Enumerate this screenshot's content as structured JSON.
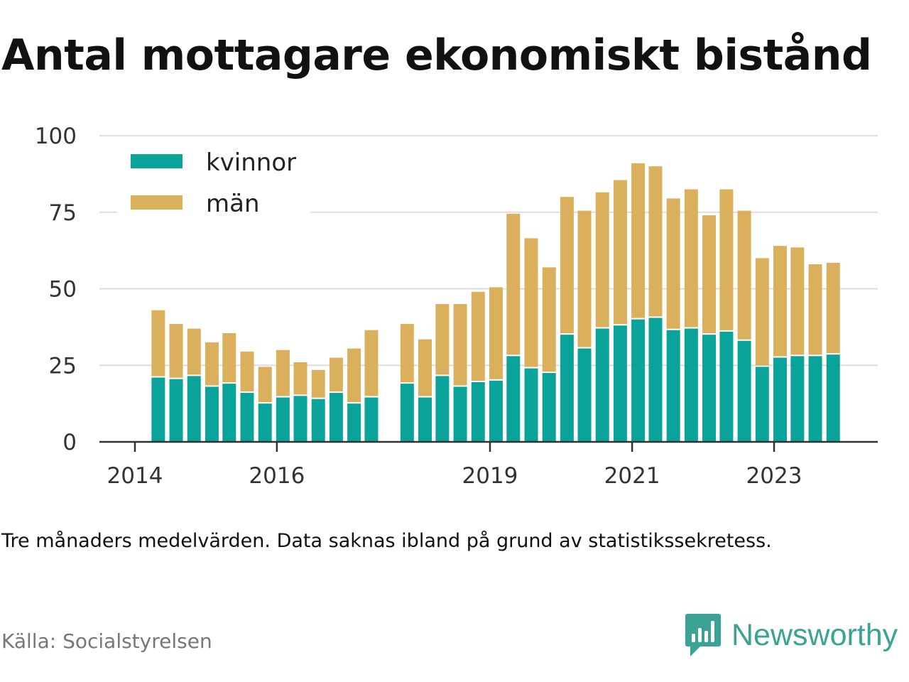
{
  "title": "Antal mottagare ekonomiskt bistånd",
  "note": "Tre månaders medelvärden. Data saknas ibland på grund av statistikssekretess.",
  "source": "Källa: Socialstyrelsen",
  "brand": "Newsworthy",
  "colors": {
    "kvinnor": "#0aa39a",
    "man": "#dbb05c",
    "grid": "#dddddd",
    "axis": "#333333",
    "brand": "#3aa394"
  },
  "chart_data": {
    "type": "bar",
    "stacked": true,
    "ylim": [
      0,
      100
    ],
    "yticks": [
      0,
      25,
      50,
      75,
      100
    ],
    "xticks": [
      "2014",
      "2016",
      "2019",
      "2021",
      "2023"
    ],
    "grid": true,
    "legend_position": "top-left",
    "x": [
      "2014-05",
      "2014-08",
      "2014-11",
      "2015-02",
      "2015-05",
      "2015-08",
      "2015-11",
      "2016-02",
      "2016-05",
      "2016-08",
      "2016-11",
      "2017-02",
      "2017-05",
      "2017-08",
      "2017-11",
      "2018-02",
      "2018-05",
      "2018-08",
      "2018-11",
      "2019-02",
      "2019-05",
      "2019-08",
      "2019-11",
      "2020-02",
      "2020-05",
      "2020-08",
      "2020-11",
      "2021-02",
      "2021-05",
      "2021-08",
      "2021-11",
      "2022-02",
      "2022-05",
      "2022-08",
      "2022-11",
      "2023-02",
      "2023-05",
      "2023-08",
      "2023-11"
    ],
    "series": [
      {
        "name": "kvinnor",
        "values": [
          21,
          20.5,
          21.5,
          18,
          19,
          16,
          12.5,
          14.5,
          15,
          14,
          16,
          12.5,
          14.5,
          null,
          19,
          14.5,
          21.5,
          18,
          19.5,
          20,
          28,
          24,
          22.5,
          35,
          30.5,
          37,
          38,
          40,
          40.5,
          36.5,
          37,
          35,
          36,
          33,
          24.5,
          27.5,
          28,
          28,
          28.5
        ]
      },
      {
        "name": "män",
        "values": [
          22,
          18,
          15.5,
          14.5,
          16.5,
          13.5,
          12,
          15.5,
          11,
          9.5,
          11.5,
          18,
          22,
          null,
          19.5,
          19,
          23.5,
          27,
          29.5,
          30.5,
          46.5,
          42.5,
          34.5,
          45,
          45,
          44.5,
          47.5,
          51,
          49.5,
          43,
          45.5,
          39,
          46.5,
          42.5,
          35.5,
          36.5,
          35.5,
          30,
          30
        ]
      }
    ]
  }
}
